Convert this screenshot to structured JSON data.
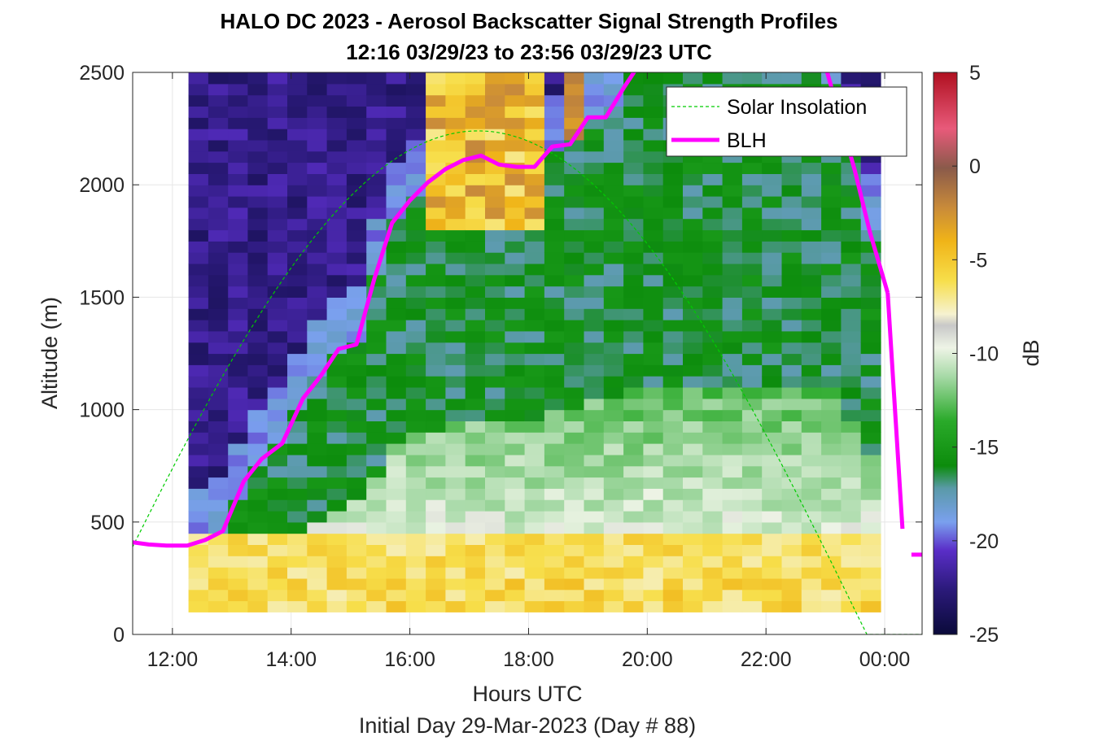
{
  "chart_data": {
    "type": "heatmap",
    "title": "HALO DC 2023 - Aerosol Backscatter Signal Strength Profiles",
    "subtitle": "12:16 03/29/23 to 23:56 03/29/23  UTC",
    "xlabel": "Hours UTC",
    "x_sublabel": "Initial Day 29-Mar-2023 (Day # 88)",
    "ylabel": "Altitude (m)",
    "xlim": [
      11.33,
      24.63
    ],
    "ylim": [
      0,
      2500
    ],
    "x_ticks": [
      12,
      14,
      16,
      18,
      20,
      22,
      24
    ],
    "x_tick_labels": [
      "12:00",
      "14:00",
      "16:00",
      "18:00",
      "20:00",
      "22:00",
      "00:00"
    ],
    "y_ticks": [
      0,
      500,
      1000,
      1500,
      2000,
      2500
    ],
    "y_tick_labels": [
      "0",
      "500",
      "1000",
      "1500",
      "2000",
      "2500"
    ],
    "grid": true,
    "colorbar": {
      "label": "dB",
      "range": [
        -25,
        5
      ],
      "ticks": [
        5,
        0,
        -5,
        -10,
        -15,
        -20,
        -25
      ],
      "tick_labels": [
        "5",
        "0",
        "-5",
        "-10",
        "-15",
        "-20",
        "-25"
      ]
    },
    "heatmap": {
      "x_start": 12.27,
      "x_end": 23.93,
      "n_columns": 35,
      "y_start": 100,
      "y_end": 2500,
      "n_rows": 48
    },
    "legend": {
      "placement": "top-right",
      "entries": [
        "Solar Insolation",
        "BLH"
      ]
    },
    "series": [
      {
        "name": "BLH",
        "color": "#ff00ff",
        "x": [
          11.33,
          11.6,
          11.9,
          12.25,
          12.55,
          12.85,
          13.2,
          13.5,
          13.85,
          14.2,
          14.5,
          14.8,
          15.1,
          15.4,
          15.7,
          16.0,
          16.3,
          16.6,
          16.9,
          17.2,
          17.5,
          17.8,
          18.1,
          18.4,
          18.7,
          19.0,
          19.3,
          19.6,
          19.85,
          23.0,
          23.5,
          23.75,
          24.05
        ],
        "y": [
          410,
          400,
          395,
          395,
          420,
          460,
          680,
          780,
          850,
          1050,
          1150,
          1270,
          1290,
          1580,
          1830,
          1930,
          2010,
          2070,
          2110,
          2130,
          2090,
          2080,
          2080,
          2170,
          2180,
          2300,
          2300,
          2430,
          2530,
          2530,
          2060,
          1790,
          1520
        ],
        "y_tail": {
          "x": [
            24.05,
            24.3
          ],
          "y": [
            1520,
            470
          ]
        }
      },
      {
        "name": "BLH",
        "color": "#ff00ff",
        "x": [
          24.45,
          24.63
        ],
        "y": [
          355,
          355
        ]
      },
      {
        "name": "Solar Insolation",
        "color": "#00cc00",
        "style": "dashed",
        "peak_x": 17.35,
        "peak_y": 2240,
        "zero_x": [
          10.6,
          23.7
        ],
        "x_end": 24.63
      }
    ]
  }
}
